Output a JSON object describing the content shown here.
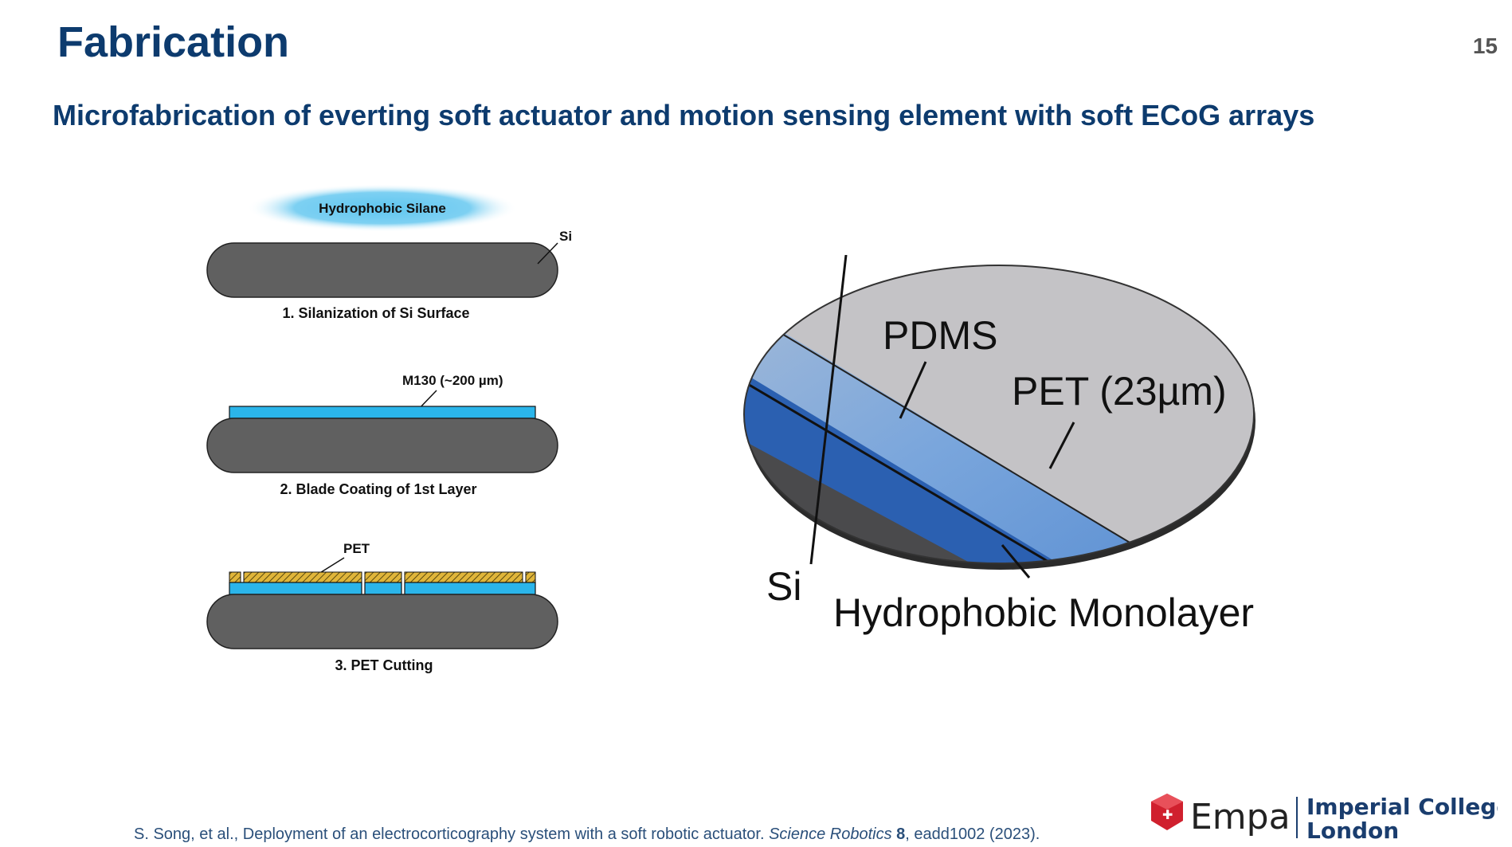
{
  "slide": {
    "title": "Fabrication",
    "page_number": "15",
    "subtitle": "Microfabrication of everting soft actuator and motion sensing element with soft ECoG arrays"
  },
  "left_figure": {
    "cloud_label": "Hydrophobic Silane",
    "si_label": "Si",
    "step1": "1. Silanization of Si Surface",
    "m130_label": "M130 (~200 µm)",
    "step2": "2. Blade Coating of 1st Layer",
    "pet_label": "PET",
    "step3": "3. PET Cutting"
  },
  "right_figure": {
    "pdms": "PDMS",
    "pet": "PET (23µm)",
    "si": "Si",
    "monolayer": "Hydrophobic Monolayer"
  },
  "citation": {
    "authors": "S. Song, et al., Deployment of an electrocorticography system with a soft robotic actuator. ",
    "journal": "Science Robotics",
    "volume": "8",
    "rest": ", eadd1002 (2023)."
  },
  "logos": {
    "empa": "Empa",
    "imperial_line1": "Imperial College",
    "imperial_line2": "London"
  },
  "colors": {
    "title_blue": "#0d3b6e",
    "si_gray": "#606060",
    "coating_blue": "#2bb5ea",
    "pet_yellow": "#e0b53a",
    "empa_red": "#d0202e"
  }
}
